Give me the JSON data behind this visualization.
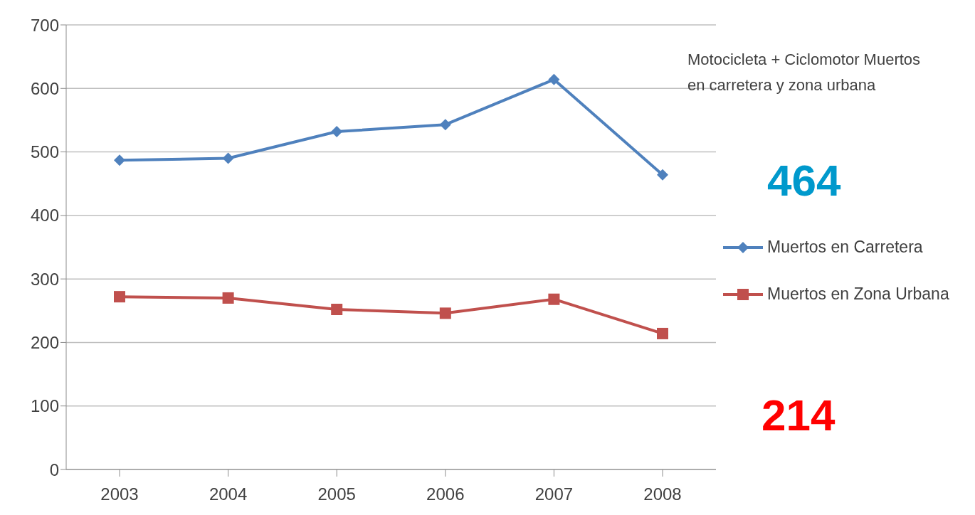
{
  "chart_data": {
    "type": "line",
    "title": "Motocicleta + Ciclomotor Muertos en carretera y zona urbana",
    "categories": [
      "2003",
      "2004",
      "2005",
      "2006",
      "2007",
      "2008"
    ],
    "series": [
      {
        "name": "Muertos en Carretera",
        "color": "#4f81bd",
        "values": [
          487,
          490,
          532,
          543,
          614,
          464
        ],
        "marker": "diamond"
      },
      {
        "name": "Muertos en Zona Urbana",
        "color": "#c0504d",
        "values": [
          272,
          270,
          252,
          246,
          268,
          214
        ],
        "marker": "square"
      }
    ],
    "ylim": [
      0,
      700
    ],
    "yticks": [
      0,
      100,
      200,
      300,
      400,
      500,
      600,
      700
    ],
    "grid": "y",
    "legend": "right",
    "annotations": [
      "464",
      "214"
    ]
  }
}
